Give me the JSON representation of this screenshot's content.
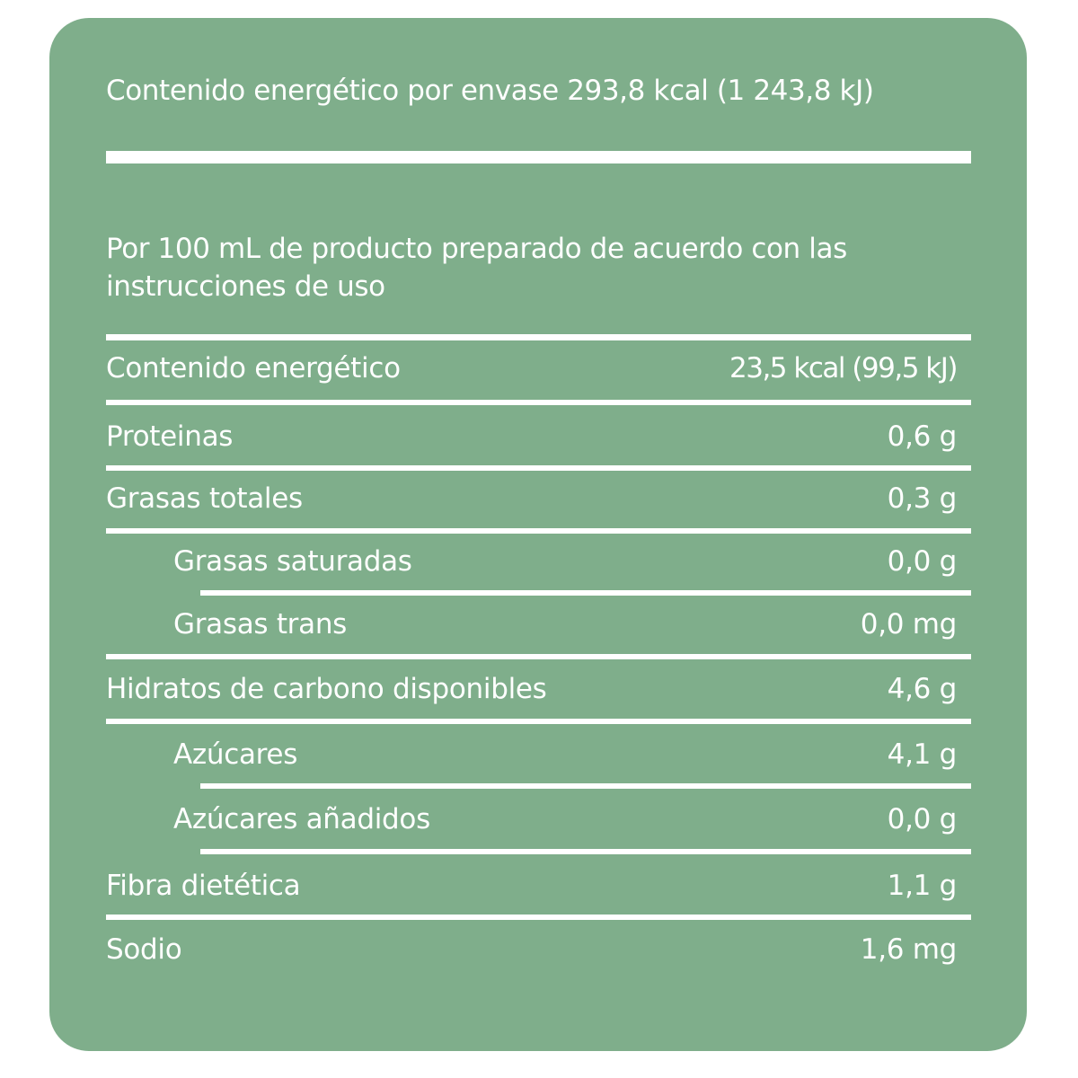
{
  "header": {
    "energy_per_package": "Contenido energético por envase 293,8 kcal (1 243,8 kJ)"
  },
  "subtitle": "Por 100 mL de producto preparado de acuerdo con las instrucciones de uso",
  "rows": [
    {
      "label": "Contenido energético",
      "value": "23,5 kcal (99,5 kJ)"
    },
    {
      "label": "Proteinas",
      "value": "0,6 g"
    },
    {
      "label": "Grasas totales",
      "value": "0,3 g"
    },
    {
      "label": "Grasas saturadas",
      "value": "0,0 g"
    },
    {
      "label": "Grasas trans",
      "value": "0,0 mg"
    },
    {
      "label": "Hidratos de carbono disponibles",
      "value": "4,6 g"
    },
    {
      "label": "Azúcares",
      "value": "4,1 g"
    },
    {
      "label": "Azúcares añadidos",
      "value": "0,0 g"
    },
    {
      "label": "Fibra dietética",
      "value": "1,1 g"
    },
    {
      "label": "Sodio",
      "value": "1,6 mg"
    }
  ],
  "colors": {
    "panel_background": "#7fae8b",
    "text": "#ffffff"
  }
}
